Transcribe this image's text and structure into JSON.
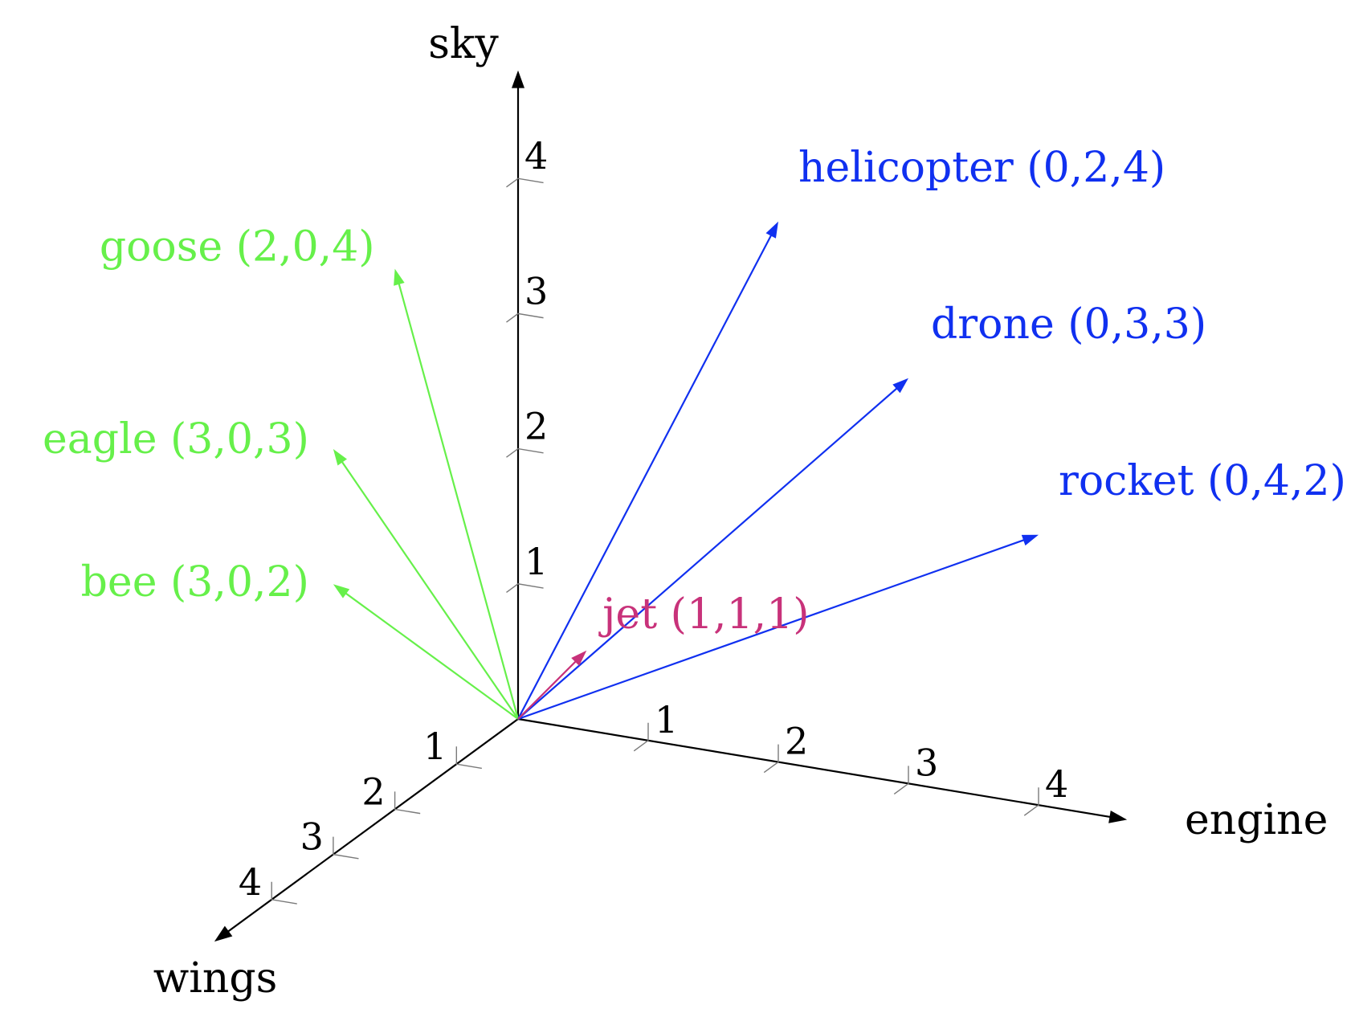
{
  "axes": {
    "x": {
      "label": "wings",
      "ticks": [
        "1",
        "2",
        "3",
        "4"
      ]
    },
    "y": {
      "label": "engine",
      "ticks": [
        "1",
        "2",
        "3",
        "4"
      ]
    },
    "z": {
      "label": "sky",
      "ticks": [
        "1",
        "2",
        "3",
        "4"
      ]
    }
  },
  "colors": {
    "axis": "#000000",
    "tick": "#7a7a7a",
    "green": "#66f04a",
    "blue": "#1030f0",
    "magenta": "#c8327a"
  },
  "vectors": [
    {
      "name": "goose",
      "label": "goose (2,0,4)",
      "coords": [
        2,
        0,
        4
      ],
      "color": "#66f04a"
    },
    {
      "name": "eagle",
      "label": "eagle (3,0,3)",
      "coords": [
        3,
        0,
        3
      ],
      "color": "#66f04a"
    },
    {
      "name": "bee",
      "label": "bee (3,0,2)",
      "coords": [
        3,
        0,
        2
      ],
      "color": "#66f04a"
    },
    {
      "name": "helicopter",
      "label": "helicopter (0,2,4)",
      "coords": [
        0,
        2,
        4
      ],
      "color": "#1030f0"
    },
    {
      "name": "drone",
      "label": "drone (0,3,3)",
      "coords": [
        0,
        3,
        3
      ],
      "color": "#1030f0"
    },
    {
      "name": "rocket",
      "label": "rocket (0,4,2)",
      "coords": [
        0,
        4,
        2
      ],
      "color": "#1030f0"
    },
    {
      "name": "jet",
      "label": "jet (1,1,1)",
      "coords": [
        1,
        1,
        1
      ],
      "color": "#c8327a"
    }
  ]
}
